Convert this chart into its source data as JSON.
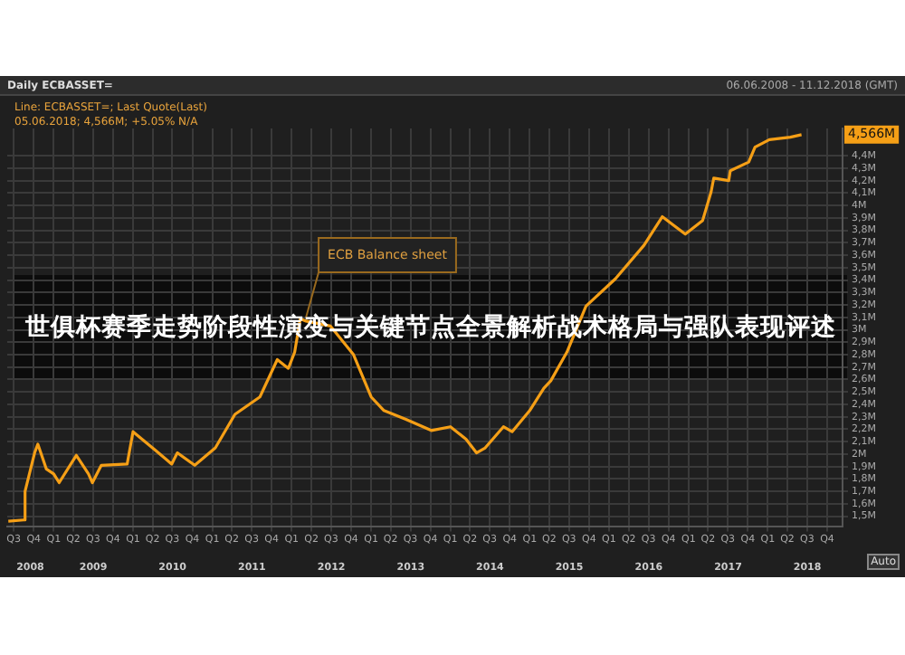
{
  "chart_data": {
    "type": "line",
    "title": "世俱杯赛季走势阶段性演变与关键节点全景解析战术格局与强队表现评述",
    "subtitle": "Daily ECBASSET=",
    "annotations": [
      "Line: ECBASSET=; Last Quote(Last)",
      "05.06.2018; 4,566M; +5.05% N/A",
      "06.06.2008 - 11.12.2018 (GMT)",
      {
        "text": "ECB Balance sheet",
        "x": "2012-03-07",
        "y": 3.07
      },
      {
        "text": "4,566M",
        "y": 4.57
      },
      "Auto"
    ],
    "x": [
      "2008-06-06",
      "2008-08-15",
      "2008-08-22",
      "2008-10-05",
      "2008-10-20",
      "2008-11-28",
      "2009-01-01",
      "2009-01-26",
      "2009-04-15",
      "2009-06-10",
      "2009-06-28",
      "2009-08-08",
      "2009-12-05",
      "2010-01-01",
      "2010-04-08",
      "2010-06-28",
      "2010-07-24",
      "2010-10-12",
      "2011-01-15",
      "2011-04-15",
      "2011-08-08",
      "2011-10-27",
      "2011-12-17",
      "2012-01-15",
      "2012-02-10",
      "2012-03-07",
      "2012-06-28",
      "2012-10-12",
      "2013-01-01",
      "2013-03-01",
      "2013-06-10",
      "2013-10-05",
      "2014-01-01",
      "2014-03-14",
      "2014-05-01",
      "2014-06-10",
      "2014-09-02",
      "2014-10-12",
      "2015-01-01",
      "2015-03-07",
      "2015-04-08",
      "2015-06-21",
      "2015-09-17",
      "2016-01-30",
      "2016-06-10",
      "2016-09-02",
      "2016-12-17",
      "2017-03-07",
      "2017-04-15",
      "2017-04-27",
      "2017-07-05",
      "2017-07-12",
      "2017-10-05",
      "2017-11-03",
      "2018-01-08",
      "2018-04-15",
      "2018-06-05"
    ],
    "series": [
      {
        "color": "#f59f16",
        "values": [
          1.46,
          1.47,
          1.7,
          2.01,
          2.08,
          1.88,
          1.84,
          1.77,
          1.99,
          1.84,
          1.77,
          1.91,
          1.92,
          2.18,
          2.04,
          1.92,
          2.01,
          1.91,
          2.05,
          2.32,
          2.46,
          2.76,
          2.69,
          2.82,
          3.09,
          3.07,
          3.03,
          2.8,
          2.46,
          2.35,
          2.28,
          2.19,
          2.22,
          2.12,
          2.01,
          2.05,
          2.22,
          2.18,
          2.35,
          2.53,
          2.59,
          2.82,
          3.19,
          3.41,
          3.68,
          3.91,
          3.77,
          3.88,
          4.11,
          4.22,
          4.2,
          4.28,
          4.35,
          4.47,
          4.53,
          4.55,
          4.57
        ]
      }
    ],
    "xlim": [
      "2008-06-01",
      "2018-12-11"
    ],
    "x2lim": [
      "2008-06-01",
      "2018-12-11"
    ],
    "ylim": [
      1.42,
      4.62
    ],
    "xticks": [
      {
        "value": "2008-07-01",
        "label": "Q3"
      },
      {
        "value": "2008-10-01",
        "label": "Q4"
      },
      {
        "value": "2009-01-01",
        "label": "Q1"
      },
      {
        "value": "2009-04-01",
        "label": "Q2"
      },
      {
        "value": "2009-07-01",
        "label": "Q3"
      },
      {
        "value": "2009-10-01",
        "label": "Q4"
      },
      {
        "value": "2010-01-01",
        "label": "Q1"
      },
      {
        "value": "2010-04-01",
        "label": "Q2"
      },
      {
        "value": "2010-07-01",
        "label": "Q3"
      },
      {
        "value": "2010-10-01",
        "label": "Q4"
      },
      {
        "value": "2011-01-01",
        "label": "Q1"
      },
      {
        "value": "2011-04-01",
        "label": "Q2"
      },
      {
        "value": "2011-07-01",
        "label": "Q3"
      },
      {
        "value": "2011-10-01",
        "label": "Q4"
      },
      {
        "value": "2012-01-01",
        "label": "Q1"
      },
      {
        "value": "2012-04-01",
        "label": "Q2"
      },
      {
        "value": "2012-07-01",
        "label": "Q3"
      },
      {
        "value": "2012-10-01",
        "label": "Q4"
      },
      {
        "value": "2013-01-01",
        "label": "Q1"
      },
      {
        "value": "2013-04-01",
        "label": "Q2"
      },
      {
        "value": "2013-07-01",
        "label": "Q3"
      },
      {
        "value": "2013-10-01",
        "label": "Q4"
      },
      {
        "value": "2014-01-01",
        "label": "Q1"
      },
      {
        "value": "2014-04-01",
        "label": "Q2"
      },
      {
        "value": "2014-07-01",
        "label": "Q3"
      },
      {
        "value": "2014-10-01",
        "label": "Q4"
      },
      {
        "value": "2015-01-01",
        "label": "Q1"
      },
      {
        "value": "2015-04-01",
        "label": "Q2"
      },
      {
        "value": "2015-07-01",
        "label": "Q3"
      },
      {
        "value": "2015-10-01",
        "label": "Q4"
      },
      {
        "value": "2016-01-01",
        "label": "Q1"
      },
      {
        "value": "2016-04-01",
        "label": "Q2"
      },
      {
        "value": "2016-07-01",
        "label": "Q3"
      },
      {
        "value": "2016-10-01",
        "label": "Q4"
      },
      {
        "value": "2017-01-01",
        "label": "Q1"
      },
      {
        "value": "2017-04-01",
        "label": "Q2"
      },
      {
        "value": "2017-07-01",
        "label": "Q3"
      },
      {
        "value": "2017-10-01",
        "label": "Q4"
      },
      {
        "value": "2018-01-01",
        "label": "Q1"
      },
      {
        "value": "2018-04-01",
        "label": "Q2"
      },
      {
        "value": "2018-07-01",
        "label": "Q3"
      },
      {
        "value": "2018-10-01",
        "label": "Q4"
      }
    ],
    "x2ticks": [
      {
        "value": "2008-09-15",
        "label": "2008"
      },
      {
        "value": "2009-07-02",
        "label": "2009"
      },
      {
        "value": "2010-07-02",
        "label": "2010"
      },
      {
        "value": "2011-07-02",
        "label": "2011"
      },
      {
        "value": "2012-07-02",
        "label": "2012"
      },
      {
        "value": "2013-07-02",
        "label": "2013"
      },
      {
        "value": "2014-07-02",
        "label": "2014"
      },
      {
        "value": "2015-07-02",
        "label": "2015"
      },
      {
        "value": "2016-07-02",
        "label": "2016"
      },
      {
        "value": "2017-07-02",
        "label": "2017"
      },
      {
        "value": "2018-07-02",
        "label": "2018"
      }
    ],
    "yticks": [
      {
        "value": 1.5,
        "label": "1,5M"
      },
      {
        "value": 1.6,
        "label": "1,6M"
      },
      {
        "value": 1.7,
        "label": "1,7M"
      },
      {
        "value": 1.8,
        "label": "1,8M"
      },
      {
        "value": 1.9,
        "label": "1,9M"
      },
      {
        "value": 2,
        "label": "2M"
      },
      {
        "value": 2.1,
        "label": "2,1M"
      },
      {
        "value": 2.2,
        "label": "2,2M"
      },
      {
        "value": 2.3,
        "label": "2,3M"
      },
      {
        "value": 2.4,
        "label": "2,4M"
      },
      {
        "value": 2.5,
        "label": "2,5M"
      },
      {
        "value": 2.6,
        "label": "2,6M"
      },
      {
        "value": 2.7,
        "label": "2,7M"
      },
      {
        "value": 2.8,
        "label": "2,8M"
      },
      {
        "value": 2.9,
        "label": "2,9M"
      },
      {
        "value": 3,
        "label": "3M"
      },
      {
        "value": 3.1,
        "label": "3,1M"
      },
      {
        "value": 3.2,
        "label": "3,2M"
      },
      {
        "value": 3.3,
        "label": "3,3M"
      },
      {
        "value": 3.4,
        "label": "3,4M"
      },
      {
        "value": 3.5,
        "label": "3,5M"
      },
      {
        "value": 3.6,
        "label": "3,6M"
      },
      {
        "value": 3.7,
        "label": "3,7M"
      },
      {
        "value": 3.8,
        "label": "3,8M"
      },
      {
        "value": 3.9,
        "label": "3,9M"
      },
      {
        "value": 4,
        "label": "4M"
      },
      {
        "value": 4.1,
        "label": "4,1M"
      },
      {
        "value": 4.2,
        "label": "4,2M"
      },
      {
        "value": 4.3,
        "label": "4,3M"
      },
      {
        "value": 4.4,
        "label": "4,4M"
      }
    ],
    "grid": true,
    "marker": "none",
    "line_style": "solid"
  }
}
